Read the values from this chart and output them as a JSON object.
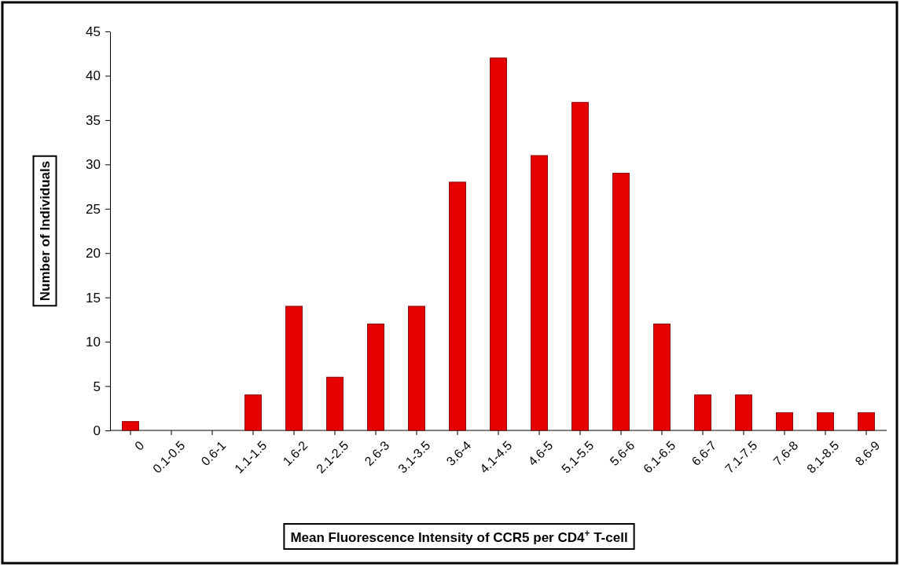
{
  "chart_data": {
    "type": "bar",
    "xlabel": "Mean Fluorescence Intensity of CCR5 per CD4$^{+}$ T-cell",
    "ylabel": "Number of Individuals",
    "categories": [
      "0",
      "0.1-0.5",
      "0.6-1",
      "1.1-1.5",
      "1.6-2",
      "2.1-2.5",
      "2.6-3",
      "3.1-3.5",
      "3.6-4",
      "4.1-4.5",
      "4.6-5",
      "5.1-5.5",
      "5.6-6",
      "6.1-6.5",
      "6.6-7",
      "7.1-7.5",
      "7.6-8",
      "8.1-8.5",
      "8.6-9"
    ],
    "values": [
      1,
      0,
      0,
      4,
      14,
      6,
      12,
      14,
      28,
      42,
      31,
      37,
      29,
      12,
      4,
      4,
      2,
      2,
      2
    ],
    "color": "#e60000",
    "ylim": [
      0,
      45
    ],
    "yticks": [
      0,
      5,
      10,
      15,
      20,
      25,
      30,
      35,
      40,
      45
    ],
    "grid": false
  }
}
